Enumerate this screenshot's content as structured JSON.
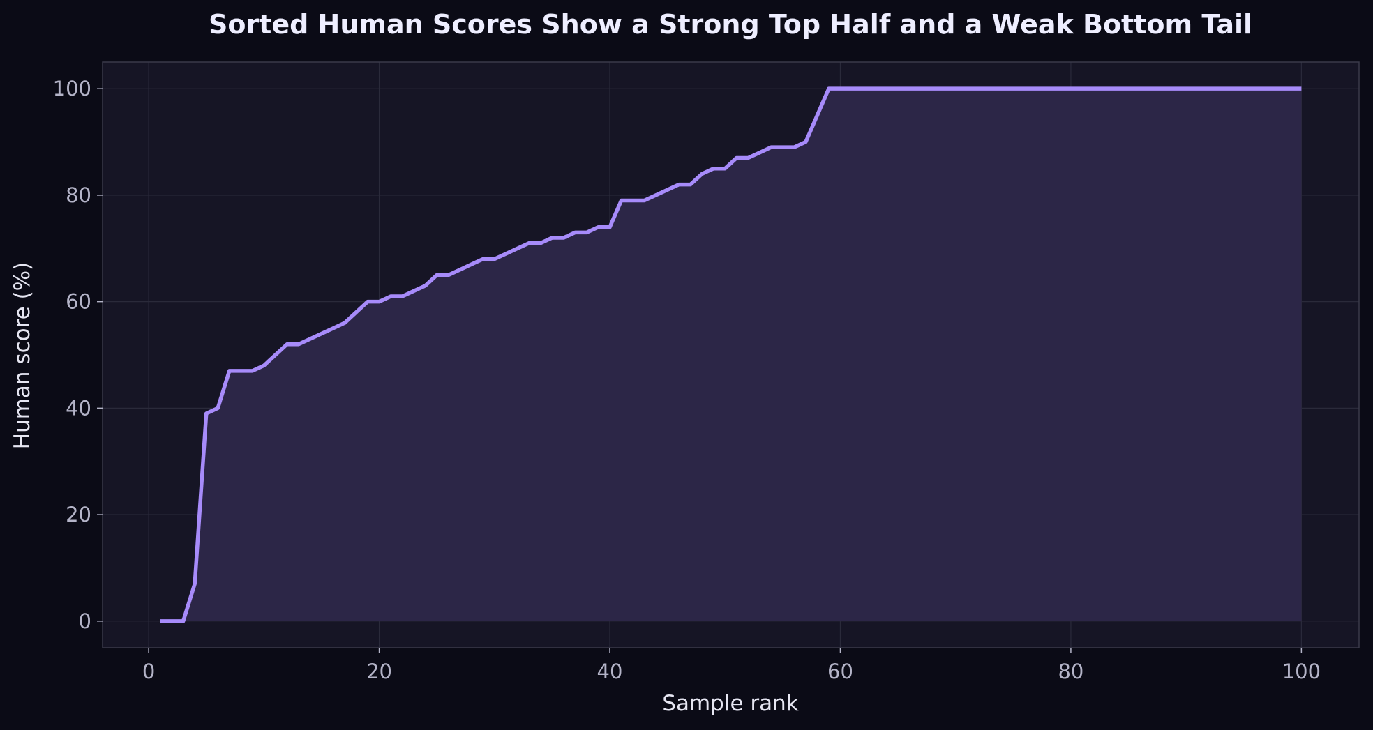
{
  "colors": {
    "page_background": "#0b0b16",
    "plot_background": "#161525",
    "plot_border": "#3a3a4a",
    "grid": "#2a2a3a",
    "line": "#a78bfa",
    "fill": "#2c2647",
    "title": "#eeeeff",
    "tick_text": "#b4b4c8",
    "axis_label_text": "#e6e6f2"
  },
  "chart_data": {
    "type": "area",
    "title": "Sorted Human Scores Show a Strong Top Half and a Weak Bottom Tail",
    "xlabel": "Sample rank",
    "ylabel": "Human score (%)",
    "xlim": [
      -4,
      105
    ],
    "ylim": [
      -5,
      105
    ],
    "xticks": [
      0,
      20,
      40,
      60,
      80,
      100
    ],
    "yticks": [
      0,
      20,
      40,
      60,
      80,
      100
    ],
    "grid": true,
    "legend": "none",
    "series": [
      {
        "x": [
          1,
          2,
          3,
          4,
          5,
          6,
          7,
          8,
          9,
          10,
          11,
          12,
          13,
          14,
          15,
          16,
          17,
          18,
          19,
          20,
          21,
          22,
          23,
          24,
          25,
          26,
          27,
          28,
          29,
          30,
          31,
          32,
          33,
          34,
          35,
          36,
          37,
          38,
          39,
          40,
          41,
          42,
          43,
          44,
          45,
          46,
          47,
          48,
          49,
          50,
          51,
          52,
          53,
          54,
          55,
          56,
          57,
          58,
          59,
          60,
          61,
          62,
          63,
          64,
          65,
          66,
          67,
          68,
          69,
          70,
          71,
          72,
          73,
          74,
          75,
          76,
          77,
          78,
          79,
          80,
          81,
          82,
          83,
          84,
          85,
          86,
          87,
          88,
          89,
          90,
          91,
          92,
          93,
          94,
          95,
          96,
          97,
          98,
          99,
          100
        ],
        "values": [
          0,
          0,
          0,
          7,
          39,
          40,
          47,
          47,
          47,
          48,
          50,
          52,
          52,
          53,
          54,
          55,
          56,
          58,
          60,
          60,
          61,
          61,
          62,
          63,
          65,
          65,
          66,
          67,
          68,
          68,
          69,
          70,
          71,
          71,
          72,
          72,
          73,
          73,
          74,
          74,
          79,
          79,
          79,
          80,
          81,
          82,
          82,
          84,
          85,
          85,
          87,
          87,
          88,
          89,
          89,
          89,
          90,
          95,
          100,
          100,
          100,
          100,
          100,
          100,
          100,
          100,
          100,
          100,
          100,
          100,
          100,
          100,
          100,
          100,
          100,
          100,
          100,
          100,
          100,
          100,
          100,
          100,
          100,
          100,
          100,
          100,
          100,
          100,
          100,
          100,
          100,
          100,
          100,
          100,
          100,
          100,
          100,
          100,
          100,
          100
        ]
      }
    ]
  }
}
